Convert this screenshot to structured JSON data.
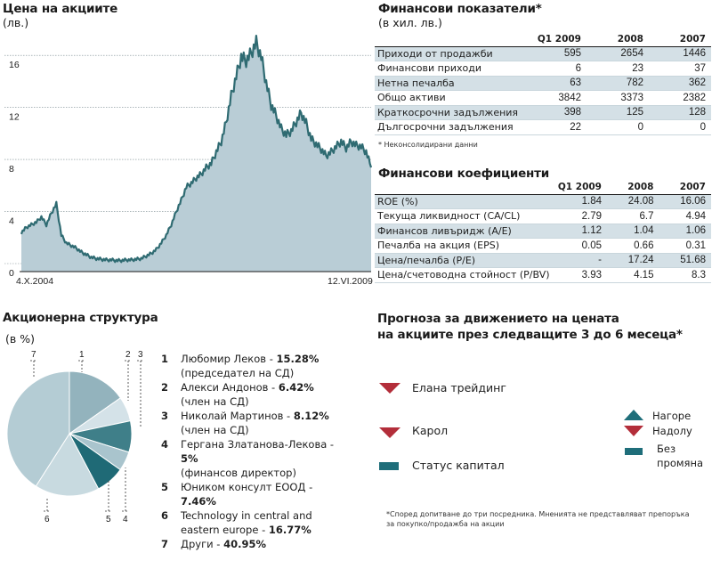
{
  "colors": {
    "accent_dark": "#1f6e7a",
    "accent_down": "#b32e3a",
    "area_fill": "#b9cdd6",
    "line": "#2f6b72",
    "row_shade": "#d4e0e6"
  },
  "price_chart": {
    "title": "Цена на акциите",
    "unit": "(лв.)",
    "start_label": "4.X.2004",
    "end_label": "12.VI.2009"
  },
  "financials": {
    "title": "Финансови показатели*",
    "unit": "(в хил. лв.)",
    "columns": [
      "Q1 2009",
      "2008",
      "2007"
    ],
    "rows": [
      {
        "label": "Приходи от продажби",
        "values": [
          "595",
          "2654",
          "1446"
        ]
      },
      {
        "label": "Финансови приходи",
        "values": [
          "6",
          "23",
          "37"
        ]
      },
      {
        "label": "Нетна печалба",
        "values": [
          "63",
          "782",
          "362"
        ]
      },
      {
        "label": "Общо активи",
        "values": [
          "3842",
          "3373",
          "2382"
        ]
      },
      {
        "label": "Краткосрочни задължения",
        "values": [
          "398",
          "125",
          "128"
        ]
      },
      {
        "label": "Дългосрочни задължения",
        "values": [
          "22",
          "0",
          "0"
        ]
      }
    ],
    "footnote": "* Неконсолидирани данни"
  },
  "ratios": {
    "title": "Финансови коефициенти",
    "columns": [
      "Q1 2009",
      "2008",
      "2007"
    ],
    "rows": [
      {
        "label": "ROE (%)",
        "values": [
          "1.84",
          "24.08",
          "16.06"
        ]
      },
      {
        "label": "Текуща ликвидност (CA/CL)",
        "values": [
          "2.79",
          "6.7",
          "4.94"
        ]
      },
      {
        "label": "Финансов ливъридж (A/E)",
        "values": [
          "1.12",
          "1.04",
          "1.06"
        ]
      },
      {
        "label": "Печалба на акция (EPS)",
        "values": [
          "0.05",
          "0.66",
          "0.31"
        ]
      },
      {
        "label": "Цена/печалба (P/E)",
        "values": [
          "-",
          "17.24",
          "51.68"
        ]
      },
      {
        "label": "Цена/счетоводна стойност (P/BV)",
        "values": [
          "3.93",
          "4.15",
          "8.3"
        ]
      }
    ]
  },
  "shareholders": {
    "title": "Акционерна структура",
    "unit": "(в %)",
    "items": [
      {
        "num": "1",
        "name": "Любомир Леков - ",
        "pct": "15.28%",
        "role": "(председател на СД)"
      },
      {
        "num": "2",
        "name": "Алекси Андонов - ",
        "pct": "6.42%",
        "role": "(член на СД)"
      },
      {
        "num": "3",
        "name": "Николай Мартинов - ",
        "pct": "8.12%",
        "role": "(член на СД)"
      },
      {
        "num": "4",
        "name": "Гергана Златанова-Лекова - ",
        "pct": "5%",
        "role": "(финансов директор)"
      },
      {
        "num": "5",
        "name": "Юником консулт ЕООД - ",
        "pct": "7.46%",
        "role": ""
      },
      {
        "num": "6",
        "name": "Technology in central and eastern europe - ",
        "pct": "16.77%",
        "role": ""
      },
      {
        "num": "7",
        "name": "Други - ",
        "pct": "40.95%",
        "role": ""
      }
    ]
  },
  "forecast": {
    "title_line1": "Прогноза за движението на цената",
    "title_line2": "на акциите през следващите 3 до 6 месеца*",
    "brokers": [
      {
        "name": "Елана трейдинг",
        "direction": "down"
      },
      {
        "name": "Карол",
        "direction": "down"
      },
      {
        "name": "Статус капитал",
        "direction": "flat"
      }
    ],
    "legend": {
      "up": "Нагоре",
      "down": "Надолу",
      "flat_line1": "Без",
      "flat_line2": "промяна"
    },
    "footnote_line1": "*Според допитване до три посредника. Мненията не представляват препоръка",
    "footnote_line2": "за покупко/продажба на акции"
  },
  "chart_data": [
    {
      "type": "area",
      "title": "Цена на акциите",
      "ylabel": "(лв.)",
      "ylim": [
        0,
        18
      ],
      "yticks": [
        0,
        4,
        8,
        12,
        16
      ],
      "x_start": "4.X.2004",
      "x_end": "12.VI.2009",
      "grid": true,
      "values": [
        3.0,
        3.4,
        3.6,
        3.8,
        4.2,
        3.6,
        4.5,
        5.2,
        2.8,
        2.2,
        2.0,
        1.8,
        1.5,
        1.3,
        1.1,
        1.0,
        0.95,
        0.9,
        0.9,
        0.85,
        0.85,
        0.9,
        0.9,
        0.95,
        1.0,
        1.2,
        1.4,
        1.7,
        2.2,
        2.8,
        3.6,
        4.6,
        5.5,
        6.5,
        6.8,
        7.2,
        7.5,
        8.0,
        8.3,
        9.2,
        10.0,
        11.5,
        13.5,
        15.0,
        16.5,
        16.2,
        16.8,
        17.6,
        16.5,
        14.5,
        12.8,
        12.0,
        11.0,
        10.5,
        10.8,
        11.5,
        12.2,
        11.4,
        10.2,
        9.8,
        9.4,
        8.9,
        9.2,
        9.6,
        10.0,
        9.5,
        10.0,
        9.7,
        9.6,
        9.2,
        8.0
      ]
    },
    {
      "type": "pie",
      "title": "Акционерна структура",
      "categories": [
        "1",
        "2",
        "3",
        "4",
        "5",
        "6",
        "7"
      ],
      "values": [
        15.28,
        6.42,
        8.12,
        5,
        7.46,
        16.77,
        40.95
      ],
      "colors": [
        "#93b3bd",
        "#d4e2e8",
        "#3f7f89",
        "#a9c4cd",
        "#1f6a76",
        "#c8dae0",
        "#b4ccd4"
      ]
    }
  ]
}
